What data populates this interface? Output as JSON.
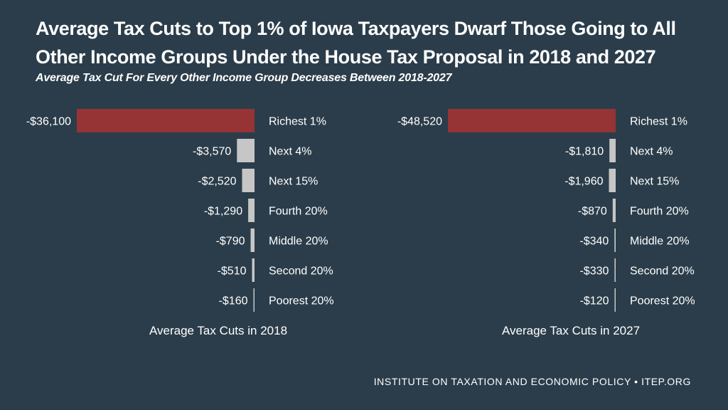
{
  "title": "Average Tax Cuts to Top 1% of Iowa Taxpayers Dwarf Those Going to All Other Income Groups Under the House Tax Proposal in 2018 and 2027",
  "subtitle": "Average Tax Cut For Every Other Income Group Decreases Between 2018-2027",
  "footer": "INSTITUTE ON TAXATION AND ECONOMIC POLICY • ITEP.ORG",
  "colors": {
    "background": "#2b3d4a",
    "highlight": "#963335",
    "other": "#c6c6c6",
    "text": "#ffffff"
  },
  "chart_data": [
    {
      "type": "bar",
      "orientation": "horizontal",
      "title": "Average Tax Cuts in 2018",
      "categories": [
        "Richest 1%",
        "Next 4%",
        "Next 15%",
        "Fourth 20%",
        "Middle 20%",
        "Second 20%",
        "Poorest 20%"
      ],
      "values": [
        -36100,
        -3570,
        -2520,
        -1290,
        -790,
        -510,
        -160
      ],
      "labels": [
        "-$36,100",
        "-$3,570",
        "-$2,520",
        "-$1,290",
        "-$790",
        "-$510",
        "-$160"
      ]
    },
    {
      "type": "bar",
      "orientation": "horizontal",
      "title": "Average Tax Cuts in 2027",
      "categories": [
        "Richest 1%",
        "Next 4%",
        "Next 15%",
        "Fourth 20%",
        "Middle 20%",
        "Second 20%",
        "Poorest 20%"
      ],
      "values": [
        -48520,
        -1810,
        -1960,
        -870,
        -340,
        -330,
        -120
      ],
      "labels": [
        "-$48,520",
        "-$1,810",
        "-$1,960",
        "-$870",
        "-$340",
        "-$330",
        "-$120"
      ]
    }
  ]
}
